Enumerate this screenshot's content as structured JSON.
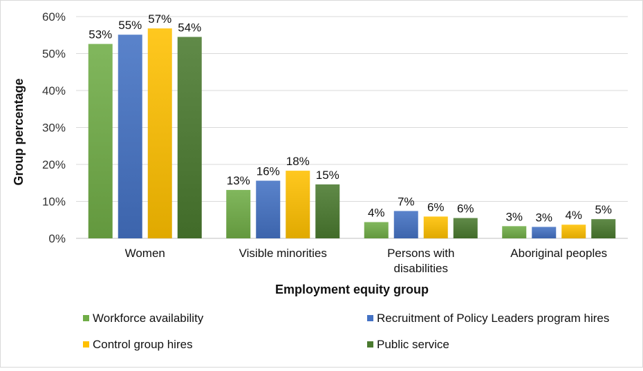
{
  "chart_data": {
    "type": "bar",
    "title": "",
    "xlabel": "Employment equity group",
    "ylabel": "Group percentage",
    "ylim": [
      0,
      60
    ],
    "yticks": [
      0,
      10,
      20,
      30,
      40,
      50,
      60
    ],
    "ytick_labels": [
      "0%",
      "10%",
      "20%",
      "30%",
      "40%",
      "50%",
      "60%"
    ],
    "grid": true,
    "legend_position": "bottom",
    "categories": [
      [
        "Women"
      ],
      [
        "Visible minorities"
      ],
      [
        "Persons with",
        "disabilities"
      ],
      [
        "Aboriginal peoples"
      ]
    ],
    "series": [
      {
        "name": "Workforce availability",
        "color": "#70AD47",
        "values": [
          52.6,
          13.1,
          4.4,
          3.3
        ],
        "labels": [
          "53%",
          "13%",
          "4%",
          "3%"
        ]
      },
      {
        "name": "Recruitment of Policy Leaders program hires",
        "color": "#4472C4",
        "values": [
          55.1,
          15.6,
          7.4,
          3.1
        ],
        "labels": [
          "55%",
          "16%",
          "7%",
          "3%"
        ]
      },
      {
        "name": "Control group hires",
        "color": "#FFC000",
        "values": [
          56.8,
          18.3,
          5.9,
          3.7
        ],
        "labels": [
          "57%",
          "18%",
          "6%",
          "4%"
        ]
      },
      {
        "name": "Public service",
        "color": "#4A7A2F",
        "values": [
          54.5,
          14.6,
          5.5,
          5.2
        ],
        "labels": [
          "54%",
          "15%",
          "6%",
          "5%"
        ]
      }
    ]
  }
}
